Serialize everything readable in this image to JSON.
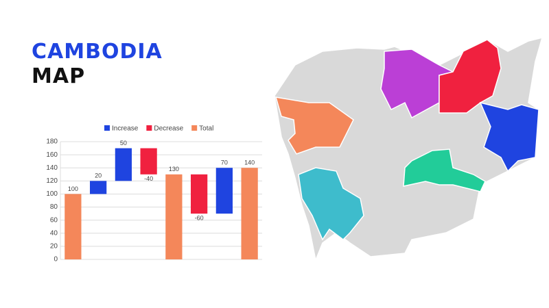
{
  "header": {
    "title": "CAMBODIA",
    "subtitle": "MAP"
  },
  "chart_data": {
    "type": "waterfall",
    "categories": [
      null,
      null,
      null,
      null,
      null,
      null,
      null,
      null
    ],
    "series": [
      {
        "name": "Increase",
        "color": "#1f44e0",
        "values": [
          null,
          20,
          50,
          null,
          null,
          null,
          70,
          null
        ]
      },
      {
        "name": "Decrease",
        "color": "#f0213f",
        "values": [
          null,
          null,
          null,
          -40,
          null,
          -60,
          null,
          null
        ]
      },
      {
        "name": "Total",
        "color": "#f4875a",
        "values": [
          100,
          null,
          null,
          null,
          130,
          null,
          null,
          140
        ]
      }
    ],
    "ylim": [
      0,
      180
    ],
    "yticks": [
      0,
      20,
      40,
      60,
      80,
      100,
      120,
      140,
      160,
      180
    ],
    "grid": true,
    "legend": "top"
  }
}
